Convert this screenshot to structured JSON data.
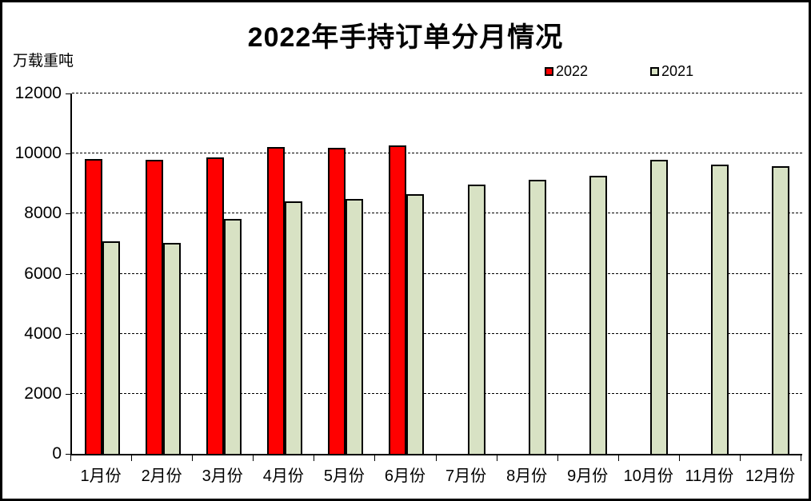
{
  "chart_data": {
    "type": "bar",
    "title": "2022年手持订单分月情况",
    "ylabel": "万载重吨",
    "xlabel": "",
    "categories": [
      "1月份",
      "2月份",
      "3月份",
      "4月份",
      "5月份",
      "6月份",
      "7月份",
      "8月份",
      "9月份",
      "10月份",
      "11月份",
      "12月份"
    ],
    "series": [
      {
        "name": "2022",
        "color": "#FF0000",
        "values": [
          9830,
          9780,
          9880,
          10230,
          10200,
          10280,
          null,
          null,
          null,
          null,
          null,
          null
        ]
      },
      {
        "name": "2021",
        "color": "#D8E2C4",
        "values": [
          7080,
          7030,
          7820,
          8410,
          8500,
          8650,
          8960,
          9130,
          9250,
          9800,
          9620,
          9580
        ]
      }
    ],
    "ylim": [
      0,
      12000
    ],
    "yticks": [
      0,
      2000,
      4000,
      6000,
      8000,
      10000,
      12000
    ],
    "grid": "horizontal-dashed",
    "legend_position": "top-right",
    "axis_color": "#000000",
    "background_color": "#FFFFFF"
  }
}
